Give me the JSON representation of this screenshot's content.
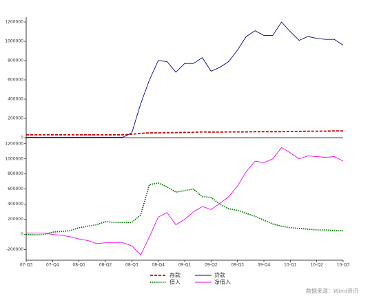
{
  "chart_data": [
    {
      "type": "line",
      "ylim": [
        0,
        1250000
      ],
      "yticks": [
        0,
        200000,
        400000,
        600000,
        800000,
        1000000,
        1200000
      ],
      "categories": [
        "07-Q3",
        null,
        null,
        "07-Q4",
        null,
        null,
        "08-Q1",
        null,
        null,
        "08-Q2",
        null,
        null,
        "08-Q3",
        null,
        null,
        "08-Q4",
        null,
        null,
        "09-Q1",
        null,
        null,
        "09-Q2",
        null,
        null,
        "09-Q3",
        null,
        null,
        "09-Q4",
        null,
        null,
        "10-Q1",
        null,
        null,
        "10-Q2",
        null,
        null,
        "10-Q3"
      ],
      "series": [
        {
          "name": "存款",
          "color": "#cc0000",
          "dash": "4,2",
          "values": [
            30000,
            30000,
            30000,
            30000,
            30000,
            30000,
            30000,
            30000,
            30000,
            30000,
            30000,
            30000,
            35000,
            45000,
            50000,
            50000,
            52000,
            52000,
            54000,
            55000,
            60000,
            58000,
            58000,
            60000,
            60000,
            60000,
            62000,
            62000,
            62000,
            62000,
            65000,
            65000,
            67000,
            67000,
            68000,
            70000,
            70000
          ]
        },
        {
          "name": "贷款",
          "color": "#000099",
          "dash": null,
          "values": [
            5000,
            5000,
            5000,
            5000,
            5000,
            5000,
            5000,
            5000,
            5000,
            5000,
            5000,
            5000,
            50000,
            350000,
            600000,
            800000,
            790000,
            680000,
            770000,
            770000,
            830000,
            690000,
            730000,
            790000,
            910000,
            1050000,
            1110000,
            1060000,
            1060000,
            1200000,
            1100000,
            1010000,
            1050000,
            1030000,
            1020000,
            1020000,
            960000
          ]
        }
      ]
    },
    {
      "type": "line",
      "ylim": [
        -340000,
        1280000
      ],
      "yticks": [
        -200000,
        0,
        200000,
        400000,
        600000,
        800000,
        1000000,
        1200000
      ],
      "categories": [
        "07-Q3",
        null,
        null,
        "07-Q4",
        null,
        null,
        "08-Q1",
        null,
        null,
        "08-Q2",
        null,
        null,
        "08-Q3",
        null,
        null,
        "08-Q4",
        null,
        null,
        "09-Q1",
        null,
        null,
        "09-Q2",
        null,
        null,
        "09-Q3",
        null,
        null,
        "09-Q4",
        null,
        null,
        "10-Q1",
        null,
        null,
        "10-Q2",
        null,
        null,
        "10-Q3"
      ],
      "series": [
        {
          "name": "借入",
          "color": "#007700",
          "dash": "1.5,1.5",
          "values": [
            0,
            -5000,
            0,
            30000,
            40000,
            50000,
            90000,
            110000,
            130000,
            170000,
            160000,
            160000,
            160000,
            260000,
            660000,
            680000,
            630000,
            560000,
            580000,
            600000,
            500000,
            490000,
            400000,
            340000,
            320000,
            280000,
            240000,
            190000,
            140000,
            110000,
            90000,
            80000,
            70000,
            60000,
            60000,
            50000,
            50000
          ]
        },
        {
          "name": "净借入",
          "color": "#ee00ee",
          "dash": null,
          "values": [
            20000,
            20000,
            20000,
            0,
            -10000,
            -30000,
            -60000,
            -80000,
            -120000,
            -110000,
            -110000,
            -110000,
            -150000,
            -270000,
            -30000,
            230000,
            290000,
            130000,
            200000,
            300000,
            370000,
            330000,
            410000,
            500000,
            640000,
            830000,
            970000,
            950000,
            1000000,
            1150000,
            1080000,
            1000000,
            1040000,
            1030000,
            1020000,
            1030000,
            970000
          ]
        }
      ]
    }
  ],
  "source": "数据来源：Wind资讯"
}
